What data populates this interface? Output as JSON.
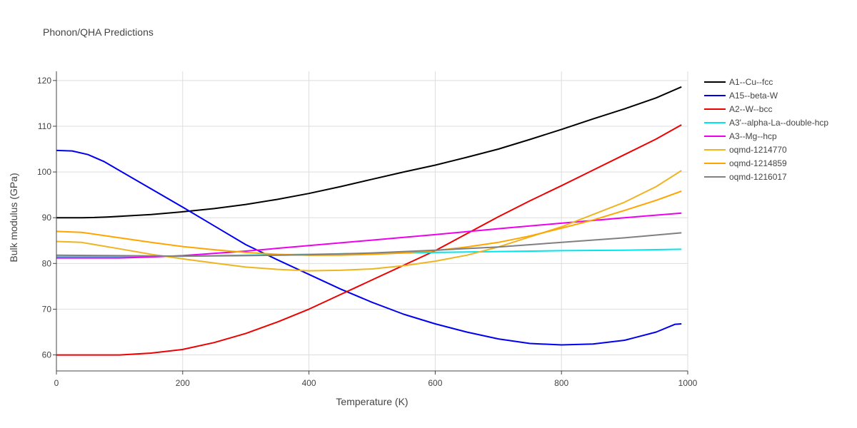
{
  "chart_data": {
    "type": "line",
    "title": "Phonon/QHA Predictions",
    "xlabel": "Temperature (K)",
    "ylabel": "Bulk modulus (GPa)",
    "xlim": [
      0,
      1000
    ],
    "ylim": [
      56.5,
      122
    ],
    "xticks": [
      0,
      200,
      400,
      600,
      800,
      1000
    ],
    "yticks": [
      60,
      70,
      80,
      90,
      100,
      110,
      120
    ],
    "grid": true,
    "legend_position": "right",
    "series": [
      {
        "name": "A1--Cu--fcc",
        "color": "#000000",
        "x": [
          0,
          20,
          40,
          60,
          80,
          100,
          150,
          200,
          250,
          300,
          350,
          400,
          450,
          500,
          550,
          600,
          650,
          700,
          750,
          800,
          850,
          900,
          950,
          990
        ],
        "y": [
          90.0,
          90.0,
          90.0,
          90.05,
          90.15,
          90.3,
          90.7,
          91.3,
          92.0,
          92.9,
          94.0,
          95.3,
          96.8,
          98.4,
          100.0,
          101.5,
          103.2,
          105.0,
          107.1,
          109.3,
          111.6,
          113.8,
          116.2,
          118.6
        ]
      },
      {
        "name": "A15--beta-W",
        "color": "#0000ee",
        "x": [
          0,
          25,
          50,
          75,
          100,
          150,
          200,
          250,
          300,
          350,
          400,
          450,
          500,
          550,
          600,
          650,
          700,
          750,
          800,
          850,
          900,
          950,
          980,
          990
        ],
        "y": [
          104.7,
          104.6,
          103.8,
          102.3,
          100.3,
          96.3,
          92.3,
          88.2,
          84.1,
          80.8,
          77.6,
          74.4,
          71.5,
          68.9,
          66.8,
          65.0,
          63.5,
          62.5,
          62.2,
          62.4,
          63.2,
          65.0,
          66.7,
          66.8
        ]
      },
      {
        "name": "A2--W--bcc",
        "color": "#ee0000",
        "x": [
          0,
          50,
          100,
          150,
          200,
          250,
          300,
          350,
          400,
          450,
          500,
          550,
          600,
          650,
          700,
          750,
          800,
          850,
          900,
          950,
          990
        ],
        "y": [
          60.0,
          60.0,
          60.0,
          60.4,
          61.2,
          62.7,
          64.7,
          67.2,
          70.0,
          73.2,
          76.4,
          79.6,
          82.8,
          86.5,
          90.2,
          93.7,
          97.0,
          100.4,
          103.8,
          107.2,
          110.3
        ]
      },
      {
        "name": "A3'--alpha-La--double-hcp",
        "color": "#00e5ee",
        "x": [
          0,
          100,
          200,
          300,
          400,
          500,
          600,
          700,
          800,
          900,
          990
        ],
        "y": [
          81.5,
          81.5,
          81.6,
          81.8,
          82.0,
          82.2,
          82.4,
          82.6,
          82.8,
          82.9,
          83.1
        ]
      },
      {
        "name": "A3--Mg--hcp",
        "color": "#ee00ee",
        "x": [
          0,
          100,
          150,
          200,
          300,
          400,
          500,
          600,
          700,
          800,
          900,
          990
        ],
        "y": [
          81.2,
          81.2,
          81.4,
          81.7,
          82.7,
          83.9,
          85.1,
          86.3,
          87.6,
          88.8,
          90.0,
          91.0
        ]
      },
      {
        "name": "oqmd-1214770",
        "color": "#eeb422",
        "x": [
          0,
          40,
          100,
          150,
          200,
          250,
          300,
          350,
          400,
          450,
          500,
          550,
          600,
          650,
          700,
          750,
          800,
          850,
          900,
          950,
          990
        ],
        "y": [
          84.8,
          84.6,
          83.2,
          82.0,
          81.0,
          80.1,
          79.2,
          78.7,
          78.4,
          78.5,
          78.8,
          79.5,
          80.5,
          81.8,
          83.6,
          85.8,
          88.0,
          90.7,
          93.4,
          96.8,
          100.3
        ]
      },
      {
        "name": "oqmd-1214859",
        "color": "#ffa500",
        "x": [
          0,
          40,
          100,
          150,
          200,
          250,
          300,
          350,
          400,
          450,
          500,
          550,
          600,
          650,
          700,
          750,
          800,
          850,
          900,
          950,
          990
        ],
        "y": [
          87.0,
          86.8,
          85.6,
          84.6,
          83.7,
          83.0,
          82.4,
          82.0,
          81.8,
          81.8,
          82.0,
          82.3,
          82.8,
          83.6,
          84.6,
          86.0,
          87.7,
          89.5,
          91.6,
          93.8,
          95.8
        ]
      },
      {
        "name": "oqmd-1216017",
        "color": "#808080",
        "x": [
          0,
          100,
          200,
          300,
          400,
          500,
          600,
          700,
          800,
          900,
          990
        ],
        "y": [
          81.8,
          81.7,
          81.6,
          81.7,
          81.9,
          82.3,
          82.9,
          83.6,
          84.6,
          85.6,
          86.7
        ]
      }
    ]
  }
}
